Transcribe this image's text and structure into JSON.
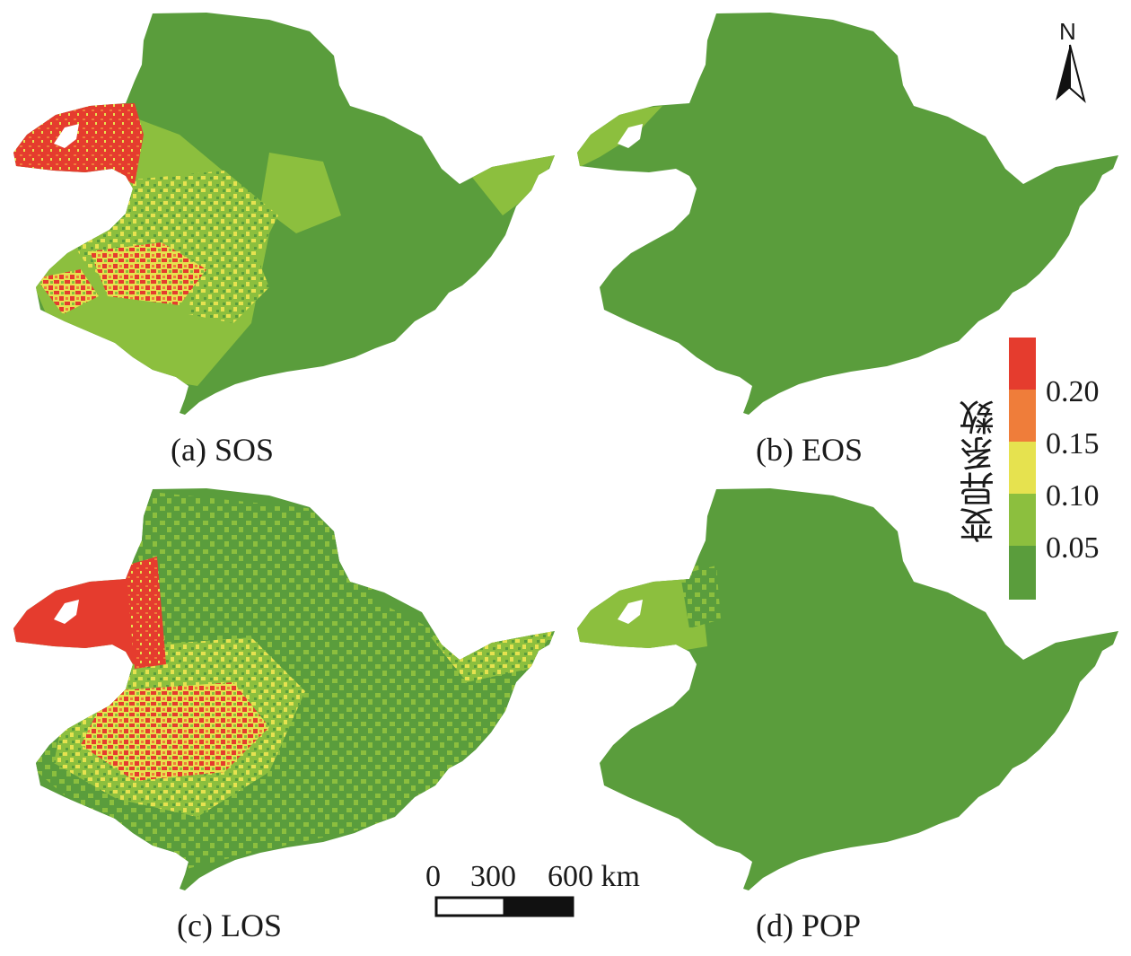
{
  "panels": {
    "a": "(a) SOS",
    "b": "(b) EOS",
    "c": "(c) LOS",
    "d": "(d) POP"
  },
  "legend": {
    "title": "变异系数",
    "ticks": [
      "0.20",
      "0.15",
      "0.10",
      "0.05"
    ],
    "classes": [
      {
        "range": "> 0.20",
        "color": "#e53c2e"
      },
      {
        "range": "0.15–0.20",
        "color": "#ef7d3a"
      },
      {
        "range": "0.10–0.15",
        "color": "#e6e24f"
      },
      {
        "range": "0.05–0.10",
        "color": "#8cbf3e"
      },
      {
        "range": "< 0.05",
        "color": "#5a9d3c"
      }
    ]
  },
  "scale_bar": {
    "label_0": "0",
    "label_300": "300",
    "label_600": "600 km"
  },
  "north_arrow": {
    "letter": "N"
  },
  "colors": {
    "dark_green": "#5a9d3c",
    "light_green": "#8cbf3e",
    "yellow": "#e6e24f",
    "orange": "#ef7d3a",
    "red": "#e53c2e"
  }
}
